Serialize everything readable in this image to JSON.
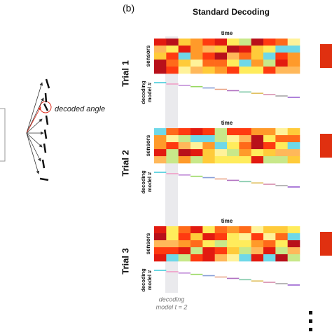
{
  "left": {
    "label": "decoded angle"
  },
  "panel": {
    "label": "(b)",
    "title": "Standard Decoding"
  },
  "trials": [
    {
      "name": "Trial 1",
      "time": "time",
      "sensors": "sensors",
      "model": [
        "decoding",
        "model #"
      ]
    },
    {
      "name": "Trial 2",
      "time": "time",
      "sensors": "sensors",
      "model": [
        "decoding",
        "model #"
      ]
    },
    {
      "name": "Trial 3",
      "time": "time",
      "sensors": "sensors",
      "model": [
        "decoding",
        "model #"
      ]
    }
  ],
  "highlight": [
    "decoding",
    "model t = 2"
  ]
}
